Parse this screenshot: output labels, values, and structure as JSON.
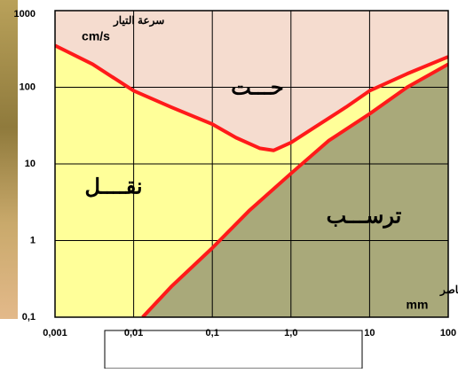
{
  "chart_data": {
    "type": "line",
    "x_scale": "log",
    "y_scale": "log",
    "xlim": [
      0.001,
      100
    ],
    "ylim": [
      0.1,
      1000
    ],
    "xticks": [
      {
        "value": 0.001,
        "label": "0,001"
      },
      {
        "value": 0.01,
        "label": "0,01"
      },
      {
        "value": 0.1,
        "label": "0,1"
      },
      {
        "value": 1,
        "label": "1,0"
      },
      10,
      100
    ],
    "yticks": [
      {
        "value": 0.1,
        "label": "0,1"
      },
      1,
      10,
      100,
      1000
    ],
    "grid": true,
    "y_label": [
      "سرعة التيار",
      "cm/s"
    ],
    "x_label": [
      "قطر العناصر",
      "mm"
    ],
    "annotations": [
      "حـــت",
      "نقــــل",
      "ترســـب"
    ],
    "fills": {
      "above": "#f5dccf",
      "between": "#ffff99",
      "below": "#a9a97a"
    },
    "series": [
      {
        "color": "#ff1a1a",
        "x": [
          0.001,
          0.003,
          0.01,
          0.03,
          0.1,
          0.2,
          0.4,
          0.6,
          1,
          2,
          5,
          10,
          30,
          100
        ],
        "values": [
          350,
          200,
          90,
          55,
          33,
          22,
          16,
          15,
          19,
          30,
          55,
          90,
          150,
          250
        ]
      },
      {
        "color": "#ff1a1a",
        "x": [
          0.013,
          0.03,
          0.1,
          0.3,
          1,
          3,
          10,
          30,
          100
        ],
        "values": [
          0.1,
          0.25,
          0.8,
          2.5,
          7.5,
          20,
          45,
          100,
          200
        ]
      }
    ]
  }
}
